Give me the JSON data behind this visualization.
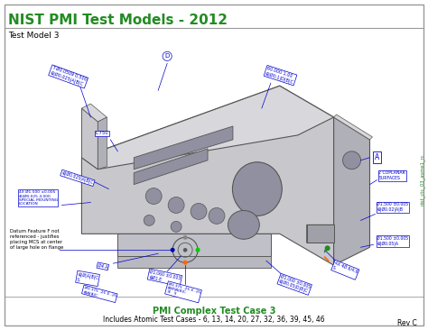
{
  "title": "NIST PMI Test Models - 2012",
  "subtitle": "Test Model 3",
  "footer_title": "PMI Complex Test Case 3",
  "footer_subtitle": "Includes Atomic Test Cases - 6, 13, 14, 20, 27, 32, 36, 39, 45, 46",
  "rev": "Rev C",
  "watermark": "nist_ctc_03_asme1_rc",
  "title_color": "#228B22",
  "footer_title_color": "#228B22",
  "footer_subtitle_color": "#000000",
  "annotation_color": "#0000CD",
  "border_color": "#999999",
  "part_face_color": "#C8C8CC",
  "part_top_color": "#D8D8DC",
  "part_right_color": "#B0B0B8",
  "part_edge_color": "#555555",
  "bg_color": "#FFFFFF",
  "note_text": "Datum Feature F not\nreferenced - justifies\nplacing MCS at center\nof large hole on flange"
}
